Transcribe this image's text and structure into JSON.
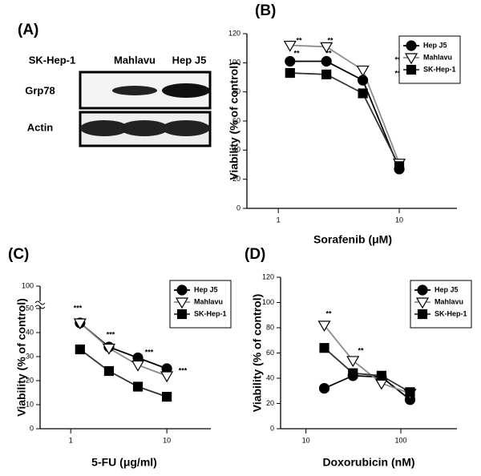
{
  "blot": {
    "panel_label": "(A)",
    "lanes": [
      "SK-Hep-1",
      "Mahlavu",
      "Hep J5"
    ],
    "rows": [
      "Grp78",
      "Actin"
    ]
  },
  "chart_data": [
    {
      "type": "line",
      "panel_label": "(B)",
      "x_label": "Sorafenib (μM)",
      "y_label": "Viability (% of control)",
      "x": [
        1.25,
        2.5,
        5,
        10
      ],
      "xscale": "log",
      "xlim": [
        0.55,
        30
      ],
      "xticks": [
        1,
        10
      ],
      "ylim": [
        0,
        120
      ],
      "yticks": [
        0,
        20,
        40,
        60,
        80,
        100,
        120
      ],
      "legend": "upper right",
      "series": [
        {
          "name": "Hep J5",
          "color": "#000000",
          "marker": "circle",
          "marker_fill": "#000000",
          "values": [
            101,
            101,
            88,
            27
          ]
        },
        {
          "name": "Mahlavu",
          "color": "#8c8c8c",
          "marker": "triangle-down",
          "marker_fill": "#ffffff",
          "values": [
            112,
            111,
            95,
            31
          ]
        },
        {
          "name": "SK-Hep-1",
          "color": "#333333",
          "marker": "square",
          "marker_fill": "#000000",
          "values": [
            93,
            92,
            79,
            29
          ]
        }
      ],
      "annotations": [
        "**",
        "**",
        "**",
        "**",
        "**",
        "**"
      ]
    },
    {
      "type": "line",
      "panel_label": "(C)",
      "x_label": "5-FU (μg/ml)",
      "y_label": "Viability (% of control)",
      "x": [
        1.25,
        2.5,
        5,
        10
      ],
      "xscale": "log",
      "xlim": [
        0.48,
        28.7
      ],
      "xticks": [
        1,
        10
      ],
      "ylim": [
        0,
        100
      ],
      "yticks": [
        0,
        10,
        20,
        30,
        40,
        50,
        100
      ],
      "axis_break": 50,
      "legend": "upper right",
      "series": [
        {
          "name": "Hep J5",
          "color": "#000000",
          "marker": "circle",
          "marker_fill": "#000000",
          "values": [
            44,
            34,
            29.5,
            25
          ]
        },
        {
          "name": "Mahlavu",
          "color": "#8c8c8c",
          "marker": "triangle-down",
          "marker_fill": "#ffffff",
          "values": [
            44,
            33.5,
            26.5,
            22
          ]
        },
        {
          "name": "SK-Hep-1",
          "color": "#333333",
          "marker": "square",
          "marker_fill": "#000000",
          "values": [
            33,
            24,
            17.5,
            13.3
          ]
        }
      ],
      "annotations": [
        "***",
        "***",
        "***",
        "***"
      ]
    },
    {
      "type": "line",
      "panel_label": "(D)",
      "x_label": "Doxorubicin (nM)",
      "y_label": "Viability (% of control)",
      "x": [
        15.6,
        31.25,
        62.5,
        125
      ],
      "xscale": "log",
      "xlim": [
        5.4,
        390
      ],
      "xticks": [
        10,
        100
      ],
      "ylim": [
        0,
        120
      ],
      "yticks": [
        0,
        20,
        40,
        60,
        80,
        100,
        120
      ],
      "legend": "upper right",
      "series": [
        {
          "name": "Hep J5",
          "color": "#000000",
          "marker": "circle",
          "marker_fill": "#000000",
          "values": [
            32,
            42,
            41,
            23
          ]
        },
        {
          "name": "Mahlavu",
          "color": "#8c8c8c",
          "marker": "triangle-down",
          "marker_fill": "#ffffff",
          "values": [
            82,
            54,
            36,
            28
          ]
        },
        {
          "name": "SK-Hep-1",
          "color": "#333333",
          "marker": "square",
          "marker_fill": "#000000",
          "values": [
            64,
            44,
            42,
            29
          ]
        }
      ],
      "annotations": [
        "**",
        "**"
      ]
    }
  ]
}
